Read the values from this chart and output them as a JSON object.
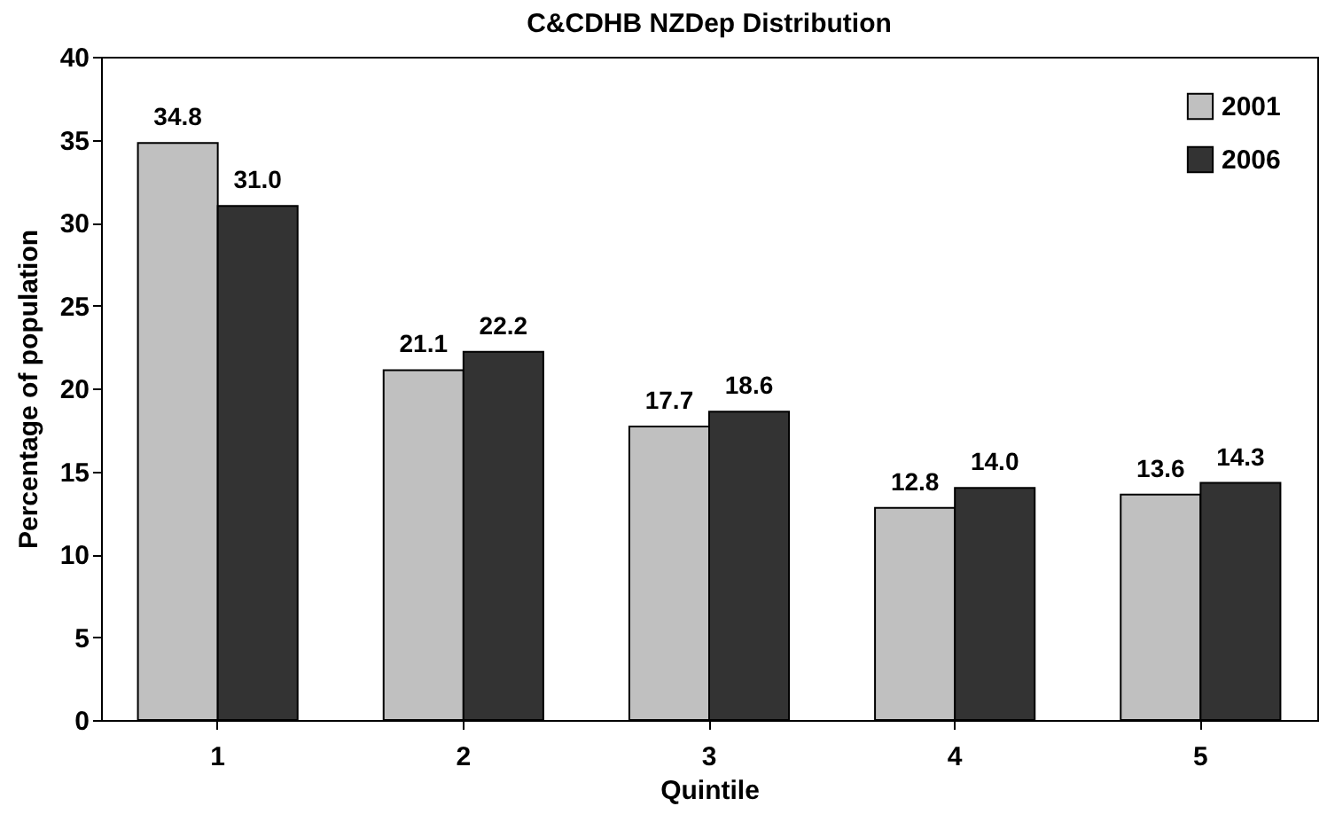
{
  "chart_data": {
    "type": "bar",
    "title": "C&CDHB NZDep Distribution",
    "xlabel": "Quintile",
    "ylabel": "Percentage of population",
    "categories": [
      "1",
      "2",
      "3",
      "4",
      "5"
    ],
    "series": [
      {
        "name": "2001",
        "color": "#c0c0c0",
        "values": [
          34.8,
          21.1,
          17.7,
          12.8,
          13.6
        ],
        "value_labels": [
          "34.8",
          "21.1",
          "17.7",
          "12.8",
          "13.6"
        ]
      },
      {
        "name": "2006",
        "color": "#333333",
        "values": [
          31.0,
          22.2,
          18.6,
          14.0,
          14.3
        ],
        "value_labels": [
          "31.0",
          "22.2",
          "18.6",
          "14.0",
          "14.3"
        ]
      }
    ],
    "ylim": [
      0,
      40
    ],
    "yticks": [
      0,
      5,
      10,
      15,
      20,
      25,
      30,
      35,
      40
    ],
    "grid": false,
    "legend": "top right"
  }
}
